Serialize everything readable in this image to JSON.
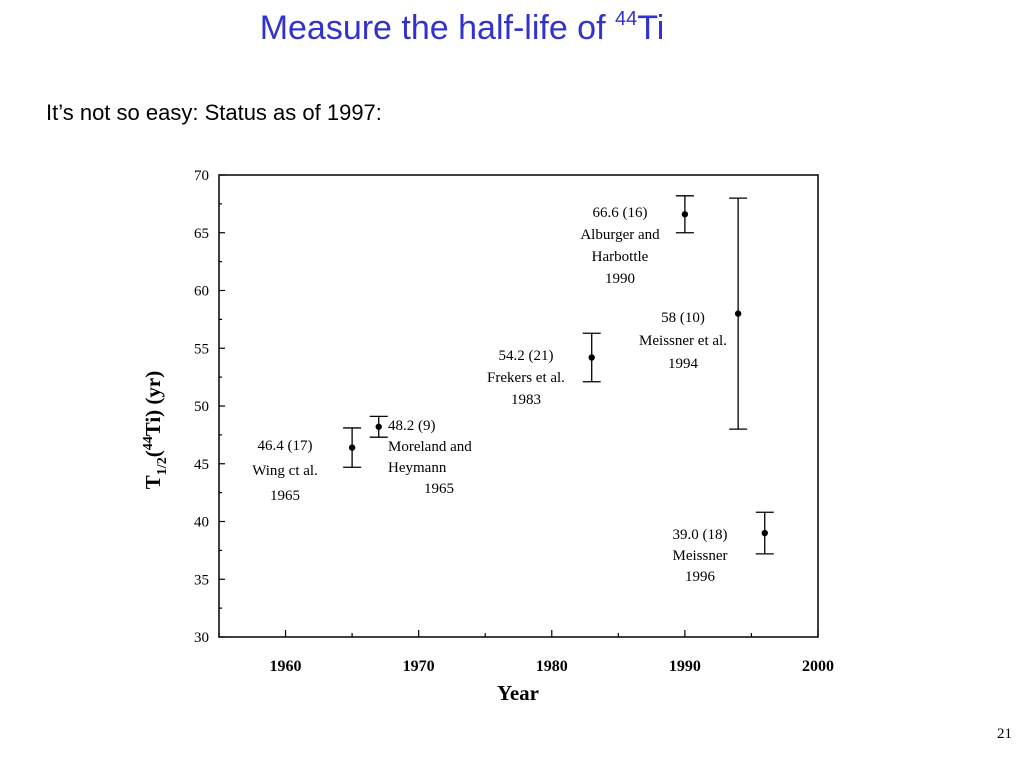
{
  "slide": {
    "title_main": "Measure the half-life of ",
    "title_sup": "44",
    "title_tail": "Ti",
    "subtitle": "It’s not so easy: Status as of 1997:",
    "page_number": "21"
  },
  "chart_data": {
    "type": "scatter",
    "xlabel": "Year",
    "ylabel_parts": {
      "main": "T",
      "sub": "1/2",
      "open": "(",
      "sup": "44",
      "rest": "Ti) (yr)"
    },
    "xlim": [
      1955,
      2000
    ],
    "ylim": [
      30,
      70
    ],
    "xticks": [
      1960,
      1970,
      1980,
      1990,
      2000
    ],
    "xtick_labels": [
      "1960",
      "1970",
      "1980",
      "1990",
      "2000"
    ],
    "yticks": [
      30,
      35,
      40,
      45,
      50,
      55,
      60,
      65,
      70
    ],
    "ytick_labels": [
      "30",
      "35",
      "40",
      "45",
      "50",
      "55",
      "60",
      "65",
      "70"
    ],
    "grid": false,
    "points": [
      {
        "x": 1965,
        "y": 46.4,
        "err": 1.7,
        "labels": [
          "46.4 (17)",
          "Wing ct al.",
          "1965"
        ]
      },
      {
        "x": 1967,
        "y": 48.2,
        "err": 0.9,
        "labels": [
          "48.2 (9)",
          "Moreland and",
          "Heymann",
          "1965"
        ]
      },
      {
        "x": 1983,
        "y": 54.2,
        "err": 2.1,
        "labels": [
          "54.2 (21)",
          "Frekers et al.",
          "1983"
        ]
      },
      {
        "x": 1990,
        "y": 66.6,
        "err": 1.6,
        "labels": [
          "66.6 (16)",
          "Alburger and",
          "Harbottle",
          "1990"
        ]
      },
      {
        "x": 1994,
        "y": 58.0,
        "err": 10.0,
        "labels": [
          "58 (10)",
          "Meissner et al.",
          "1994"
        ]
      },
      {
        "x": 1996,
        "y": 39.0,
        "err": 1.8,
        "labels": [
          "39.0 (18)",
          "Meissner",
          "1996"
        ]
      }
    ]
  }
}
